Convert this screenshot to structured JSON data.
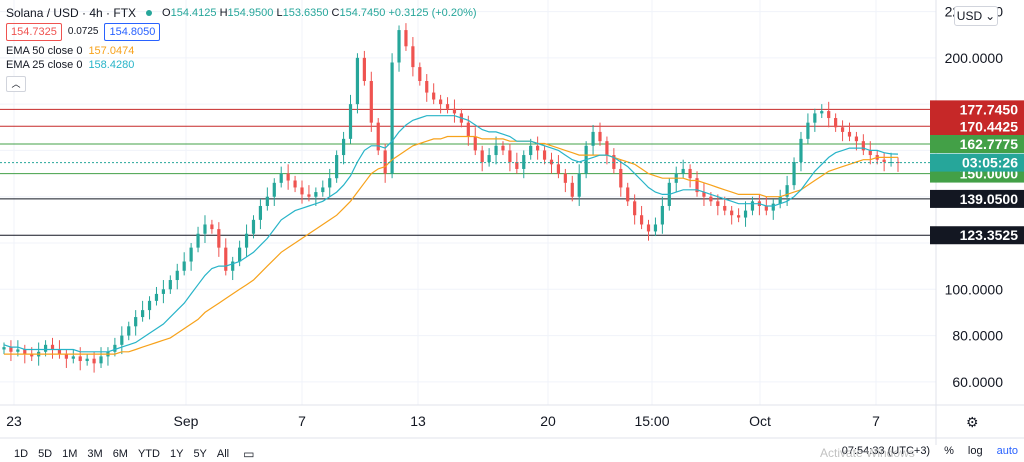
{
  "header": {
    "symbol": "Solana / USD · 4h · FTX",
    "ohlc": {
      "open_key": "O",
      "open": "154.4125",
      "high_key": "H",
      "high": "154.9500",
      "low_key": "L",
      "low": "153.6350",
      "close_key": "C",
      "close": "154.7450",
      "change": "+0.3125 (+0.20%)"
    },
    "sell_price": "154.7325",
    "spread": "0.0725",
    "buy_price": "154.8050",
    "ema50_label": "EMA 50 close 0",
    "ema50_value": "157.0474",
    "ema25_label": "EMA 25 close 0",
    "ema25_value": "158.4280",
    "collapse_icon": "chevron-up-icon"
  },
  "currency": "USD",
  "time_ranges": [
    "1D",
    "5D",
    "1M",
    "3M",
    "6M",
    "YTD",
    "1Y",
    "5Y",
    "All"
  ],
  "bottom": {
    "clock": "07:54:33 (UTC+3)",
    "percent": "%",
    "log": "log",
    "auto": "auto",
    "watermark": "Activate Windows"
  },
  "colors": {
    "up": "#26a69a",
    "down": "#ef5350",
    "ema25": "#28b4c8",
    "ema50": "#f7a21b",
    "red_line": "#c62828",
    "green_line": "#43a047",
    "dark_line": "#131722"
  },
  "chart_data": {
    "type": "candlestick",
    "title": "Solana / USD · 4h · FTX",
    "ylim": [
      50,
      225
    ],
    "y_ticks": [
      "220.0000",
      "200.0000",
      "100.0000",
      "80.0000",
      "60.0000"
    ],
    "x_ticks": [
      "23",
      "Sep",
      "7",
      "13",
      "20",
      "15:00",
      "Oct",
      "7"
    ],
    "horizontal_lines": [
      {
        "value": 177.745,
        "label": "177.7450",
        "color": "#c62828"
      },
      {
        "value": 170.4425,
        "label": "170.4425",
        "color": "#c62828"
      },
      {
        "value": 162.7775,
        "label": "162.7775",
        "color": "#43a047"
      },
      {
        "value": 150.0,
        "label": "150.0000",
        "color": "#43a047"
      },
      {
        "value": 139.05,
        "label": "139.0500",
        "color": "#131722"
      },
      {
        "value": 123.3525,
        "label": "123.3525",
        "color": "#131722"
      }
    ],
    "current_price": {
      "value": 154.745,
      "label": "03:05:26"
    },
    "close_series": [
      75,
      73,
      74,
      72,
      71,
      73,
      76,
      74,
      72,
      70,
      71,
      69,
      70,
      68,
      71,
      73,
      76,
      80,
      84,
      88,
      91,
      95,
      98,
      100,
      104,
      108,
      112,
      118,
      124,
      128,
      126,
      118,
      108,
      112,
      118,
      124,
      130,
      136,
      140,
      146,
      150,
      147,
      144,
      141,
      140,
      142,
      144,
      148,
      158,
      165,
      180,
      200,
      190,
      172,
      160,
      150,
      198,
      212,
      205,
      196,
      190,
      185,
      182,
      180,
      178,
      176,
      172,
      166,
      160,
      155,
      158,
      162,
      160,
      155,
      152,
      158,
      162,
      160,
      156,
      154,
      150,
      146,
      140,
      150,
      162,
      168,
      164,
      158,
      152,
      144,
      138,
      132,
      128,
      125,
      128,
      136,
      146,
      150,
      152,
      148,
      142,
      140,
      138,
      136,
      134,
      132,
      131,
      134,
      138,
      136,
      134,
      137,
      140,
      145,
      155,
      165,
      172,
      176,
      177,
      174,
      170,
      168,
      166,
      164,
      160,
      158,
      156,
      155,
      155,
      154.75
    ],
    "ema25": [
      76,
      75,
      75,
      74,
      74,
      74,
      74,
      74,
      74,
      74,
      74,
      73,
      73,
      73,
      73,
      73,
      74,
      75,
      76,
      77,
      79,
      81,
      83,
      85,
      88,
      91,
      94,
      98,
      102,
      106,
      109,
      110,
      110,
      111,
      112,
      114,
      116,
      119,
      122,
      126,
      130,
      132,
      134,
      135,
      136,
      137,
      138,
      140,
      142,
      145,
      149,
      155,
      160,
      162,
      162,
      161,
      164,
      168,
      171,
      173,
      174,
      175,
      175,
      175,
      175,
      175,
      174,
      173,
      171,
      169,
      168,
      168,
      167,
      166,
      164,
      164,
      164,
      163,
      162,
      161,
      160,
      158,
      156,
      155,
      156,
      157,
      158,
      158,
      157,
      155,
      153,
      150,
      147,
      144,
      142,
      141,
      141,
      142,
      143,
      143,
      143,
      142,
      141,
      140,
      139,
      138,
      137,
      137,
      137,
      137,
      136,
      136,
      137,
      138,
      140,
      143,
      147,
      151,
      154,
      157,
      159,
      160,
      161,
      161,
      161,
      160,
      160,
      159,
      158.5,
      158.43
    ],
    "ema50": [
      72,
      72,
      72,
      72,
      72,
      72,
      72,
      72,
      72,
      72,
      72,
      72,
      72,
      72,
      72,
      72,
      72,
      73,
      73,
      74,
      75,
      76,
      77,
      78,
      79,
      81,
      83,
      85,
      87,
      90,
      92,
      94,
      96,
      98,
      100,
      102,
      104,
      107,
      110,
      113,
      116,
      118,
      120,
      122,
      124,
      126,
      128,
      130,
      132,
      135,
      138,
      142,
      146,
      150,
      152,
      153,
      156,
      158,
      160,
      162,
      163,
      164,
      165,
      165,
      166,
      166,
      166,
      166,
      166,
      165,
      165,
      165,
      165,
      164,
      164,
      164,
      164,
      163,
      163,
      162,
      161,
      160,
      159,
      158,
      158,
      158,
      158,
      158,
      157,
      156,
      155,
      154,
      152,
      150,
      149,
      148,
      148,
      148,
      148,
      147,
      147,
      146,
      145,
      144,
      143,
      142,
      141,
      141,
      141,
      141,
      140,
      140,
      140,
      141,
      142,
      143,
      145,
      147,
      149,
      151,
      152,
      153,
      154,
      155,
      156,
      156,
      157,
      157,
      157,
      157.05
    ]
  }
}
